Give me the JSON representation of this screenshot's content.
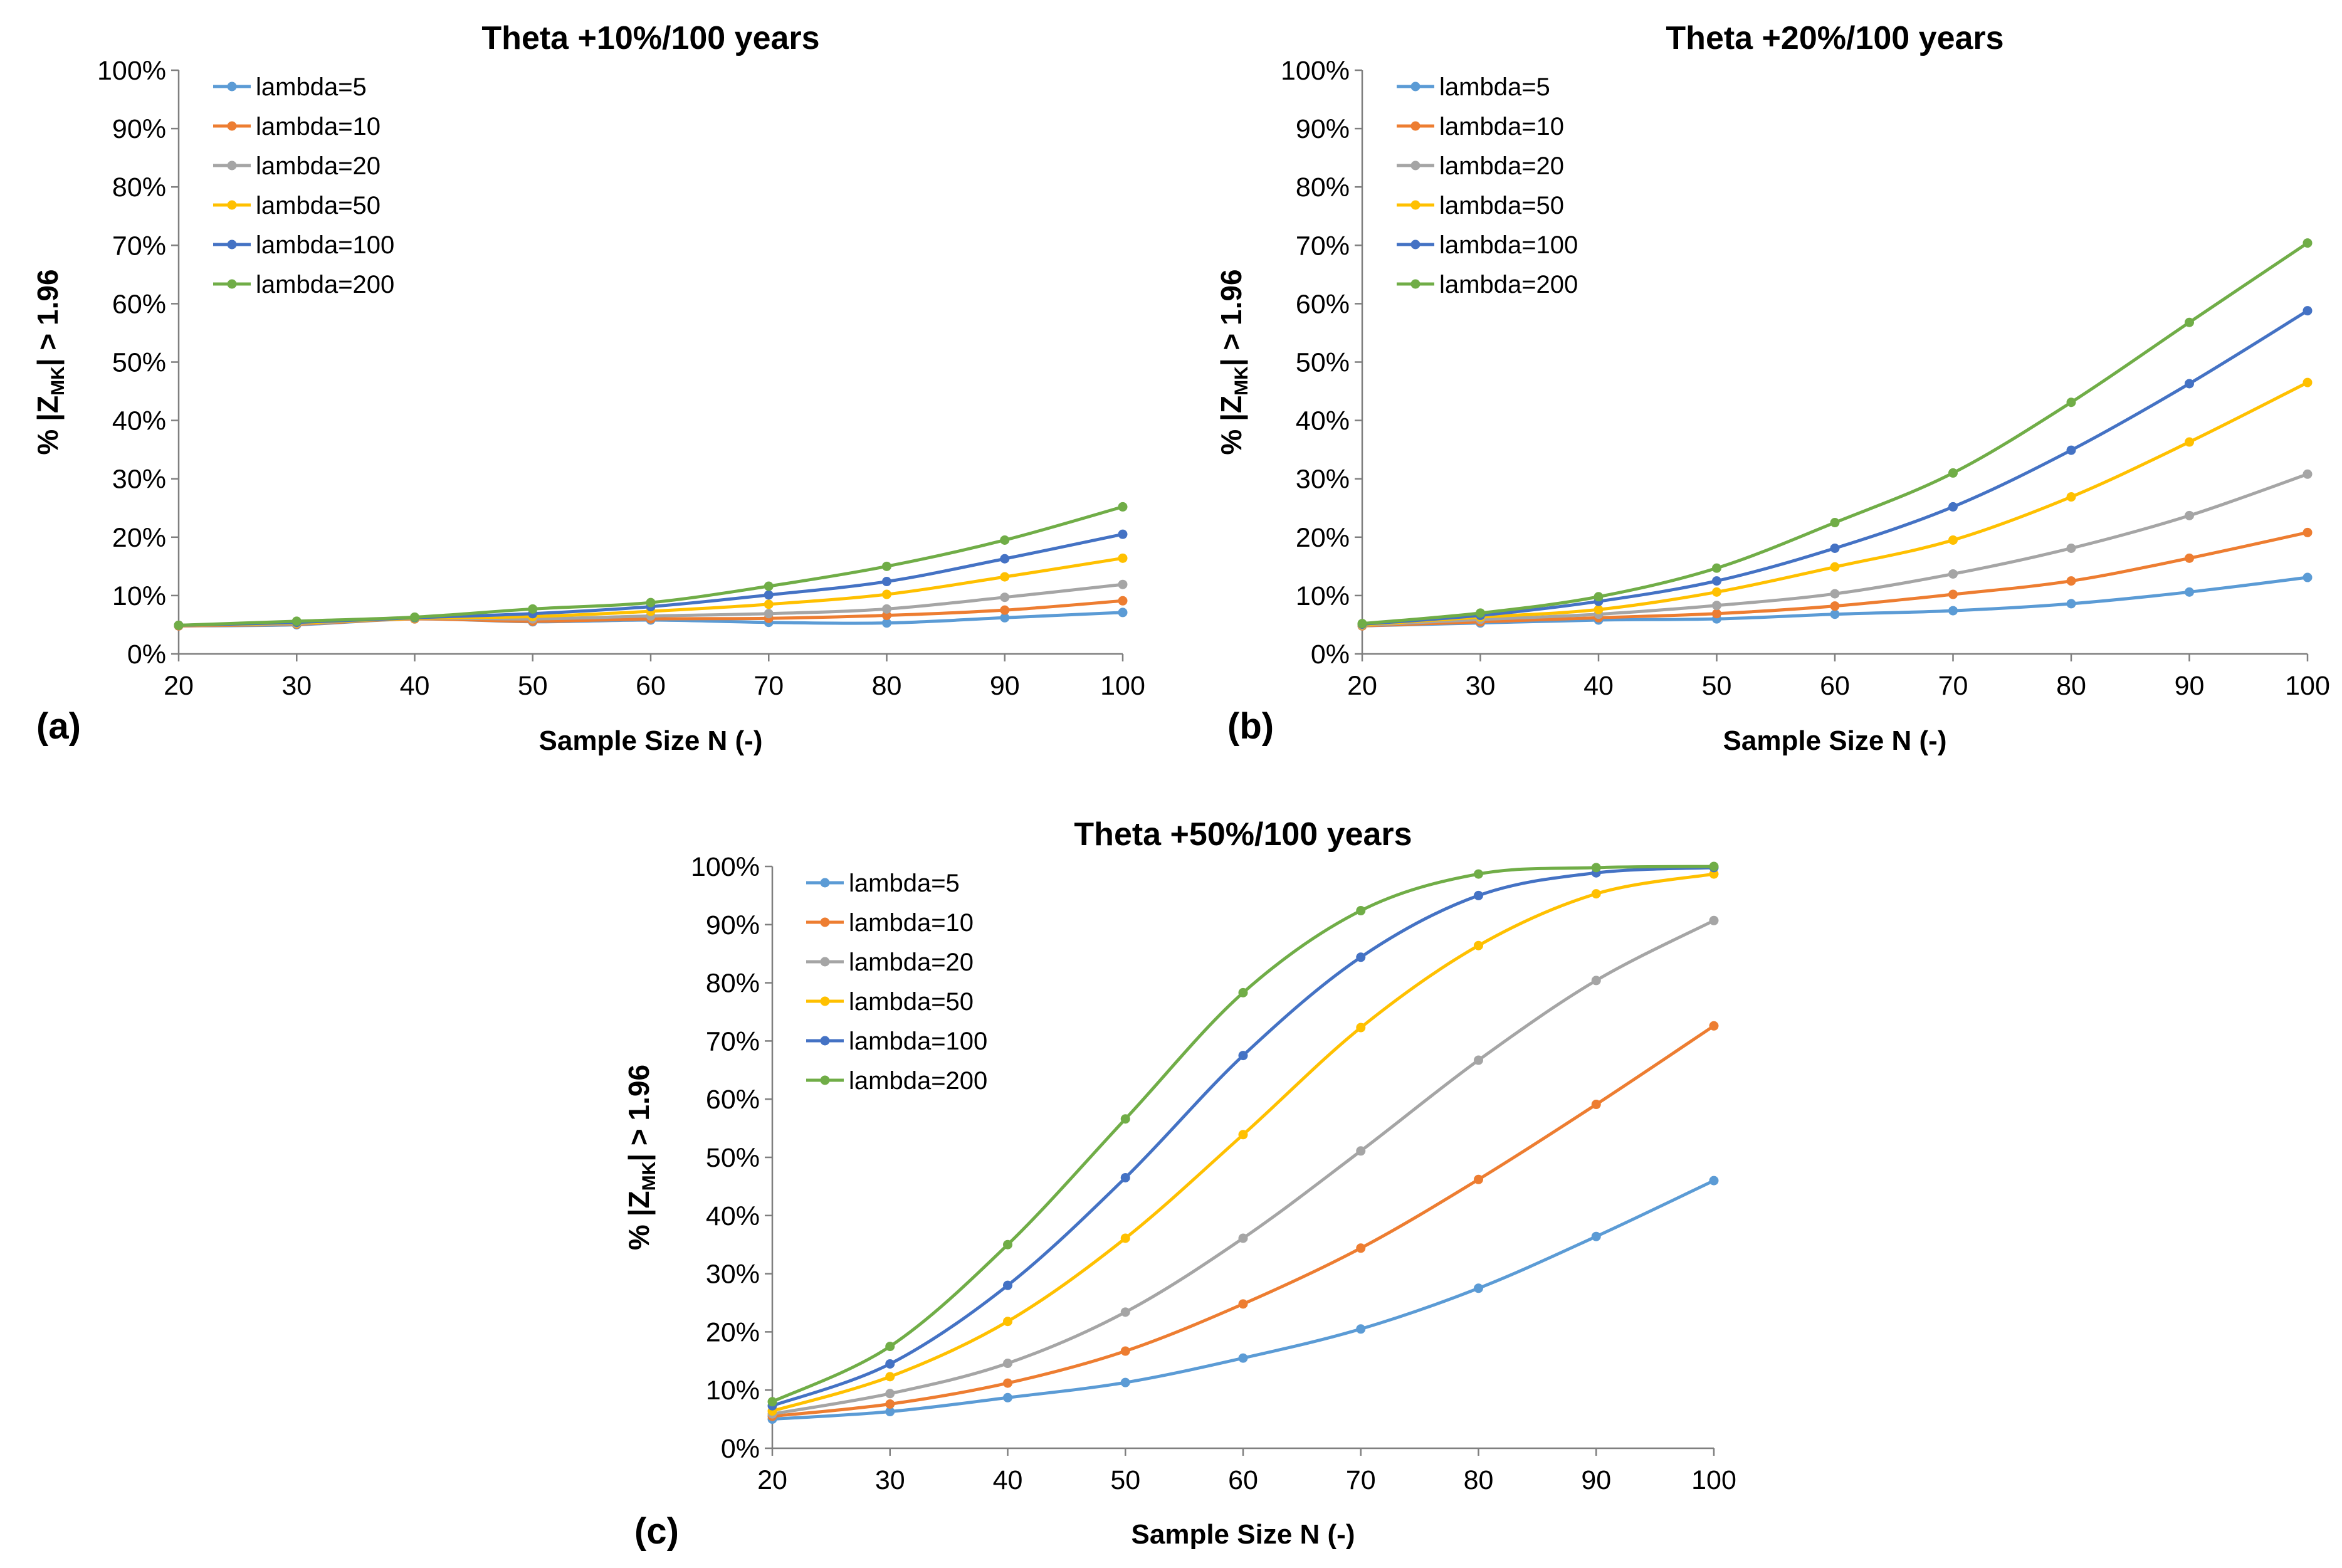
{
  "chart_data": [
    {
      "type": "line",
      "panel": "(a)",
      "title": "Theta +10%/100 years",
      "xlabel": "Sample Size N (-)",
      "ylabel": "% |Z_MK| > 1.96",
      "ylabel_parts": {
        "main": "% |Z",
        "sub": "MK",
        "end": "| > 1.96"
      },
      "x": [
        20,
        30,
        40,
        50,
        60,
        70,
        80,
        90,
        100
      ],
      "xlim": [
        20,
        100
      ],
      "ylim": [
        0,
        100
      ],
      "xticks": [
        "20",
        "30",
        "40",
        "50",
        "60",
        "70",
        "80",
        "90",
        "100"
      ],
      "yticks": [
        "0%",
        "10%",
        "20%",
        "30%",
        "40%",
        "50%",
        "60%",
        "70%",
        "80%",
        "90%",
        "100%"
      ],
      "grid": false,
      "legend": "top-left",
      "series": [
        {
          "name": "lambda=5",
          "color": "#5B9BD5",
          "values": [
            4.8,
            5.0,
            6.0,
            5.5,
            5.8,
            5.4,
            5.3,
            6.2,
            7.1
          ]
        },
        {
          "name": "lambda=10",
          "color": "#ED7D31",
          "values": [
            4.8,
            5.1,
            6.0,
            5.6,
            6.0,
            6.1,
            6.6,
            7.5,
            9.1
          ]
        },
        {
          "name": "lambda=20",
          "color": "#A5A5A5",
          "values": [
            4.9,
            5.2,
            6.1,
            6.0,
            6.5,
            6.9,
            7.7,
            9.7,
            11.9
          ]
        },
        {
          "name": "lambda=50",
          "color": "#FFC000",
          "values": [
            4.9,
            5.3,
            6.1,
            6.4,
            7.3,
            8.5,
            10.2,
            13.2,
            16.4
          ]
        },
        {
          "name": "lambda=100",
          "color": "#4472C4",
          "values": [
            4.9,
            5.4,
            6.2,
            6.9,
            8.1,
            10.1,
            12.4,
            16.3,
            20.5
          ]
        },
        {
          "name": "lambda=200",
          "color": "#70AD47",
          "values": [
            4.9,
            5.6,
            6.3,
            7.7,
            8.8,
            11.6,
            15.0,
            19.5,
            25.2
          ]
        }
      ]
    },
    {
      "type": "line",
      "panel": "(b)",
      "title": "Theta +20%/100 years",
      "xlabel": "Sample Size N (-)",
      "ylabel": "% |Z_MK| > 1.96",
      "ylabel_parts": {
        "main": "% |Z",
        "sub": "MK",
        "end": "| > 1.96"
      },
      "x": [
        20,
        30,
        40,
        50,
        60,
        70,
        80,
        90,
        100
      ],
      "xlim": [
        20,
        100
      ],
      "ylim": [
        0,
        100
      ],
      "xticks": [
        "20",
        "30",
        "40",
        "50",
        "60",
        "70",
        "80",
        "90",
        "100"
      ],
      "yticks": [
        "0%",
        "10%",
        "20%",
        "30%",
        "40%",
        "50%",
        "60%",
        "70%",
        "80%",
        "90%",
        "100%"
      ],
      "grid": false,
      "legend": "top-left",
      "series": [
        {
          "name": "lambda=5",
          "color": "#5B9BD5",
          "values": [
            4.8,
            5.3,
            5.8,
            6.0,
            6.8,
            7.4,
            8.6,
            10.6,
            13.1
          ]
        },
        {
          "name": "lambda=10",
          "color": "#ED7D31",
          "values": [
            4.8,
            5.5,
            6.2,
            6.9,
            8.2,
            10.2,
            12.5,
            16.4,
            20.8
          ]
        },
        {
          "name": "lambda=20",
          "color": "#A5A5A5",
          "values": [
            4.9,
            5.9,
            6.8,
            8.3,
            10.3,
            13.7,
            18.1,
            23.7,
            30.8
          ]
        },
        {
          "name": "lambda=50",
          "color": "#FFC000",
          "values": [
            5.0,
            6.3,
            7.6,
            10.6,
            14.9,
            19.5,
            26.9,
            36.3,
            46.5
          ]
        },
        {
          "name": "lambda=100",
          "color": "#4472C4",
          "values": [
            5.1,
            6.6,
            9.0,
            12.5,
            18.1,
            25.2,
            34.9,
            46.3,
            58.8
          ]
        },
        {
          "name": "lambda=200",
          "color": "#70AD47",
          "values": [
            5.2,
            7.0,
            9.8,
            14.7,
            22.5,
            31.0,
            43.1,
            56.8,
            70.4
          ]
        }
      ]
    },
    {
      "type": "line",
      "panel": "(c)",
      "title": "Theta +50%/100 years",
      "xlabel": "Sample Size N (-)",
      "ylabel": "% |Z_MK| > 1.96",
      "ylabel_parts": {
        "main": "% |Z",
        "sub": "MK",
        "end": "| > 1.96"
      },
      "x": [
        20,
        30,
        40,
        50,
        60,
        70,
        80,
        90,
        100
      ],
      "xlim": [
        20,
        100
      ],
      "ylim": [
        0,
        100
      ],
      "xticks": [
        "20",
        "30",
        "40",
        "50",
        "60",
        "70",
        "80",
        "90",
        "100"
      ],
      "yticks": [
        "0%",
        "10%",
        "20%",
        "30%",
        "40%",
        "50%",
        "60%",
        "70%",
        "80%",
        "90%",
        "100%"
      ],
      "grid": false,
      "legend": "top-left",
      "series": [
        {
          "name": "lambda=5",
          "color": "#5B9BD5",
          "values": [
            5.0,
            6.3,
            8.7,
            11.3,
            15.5,
            20.5,
            27.5,
            36.4,
            46.0
          ]
        },
        {
          "name": "lambda=10",
          "color": "#ED7D31",
          "values": [
            5.5,
            7.6,
            11.2,
            16.7,
            24.8,
            34.4,
            46.2,
            59.1,
            72.6
          ]
        },
        {
          "name": "lambda=20",
          "color": "#A5A5A5",
          "values": [
            5.9,
            9.4,
            14.6,
            23.4,
            36.1,
            51.1,
            66.7,
            80.4,
            90.7
          ]
        },
        {
          "name": "lambda=50",
          "color": "#FFC000",
          "values": [
            6.4,
            12.3,
            21.8,
            36.1,
            53.9,
            72.3,
            86.4,
            95.3,
            98.7
          ]
        },
        {
          "name": "lambda=100",
          "color": "#4472C4",
          "values": [
            7.3,
            14.5,
            28.0,
            46.5,
            67.5,
            84.4,
            95.0,
            98.9,
            99.8
          ]
        },
        {
          "name": "lambda=200",
          "color": "#70AD47",
          "values": [
            8.0,
            17.5,
            35.0,
            56.6,
            78.3,
            92.4,
            98.7,
            99.8,
            100.0
          ]
        }
      ]
    }
  ]
}
